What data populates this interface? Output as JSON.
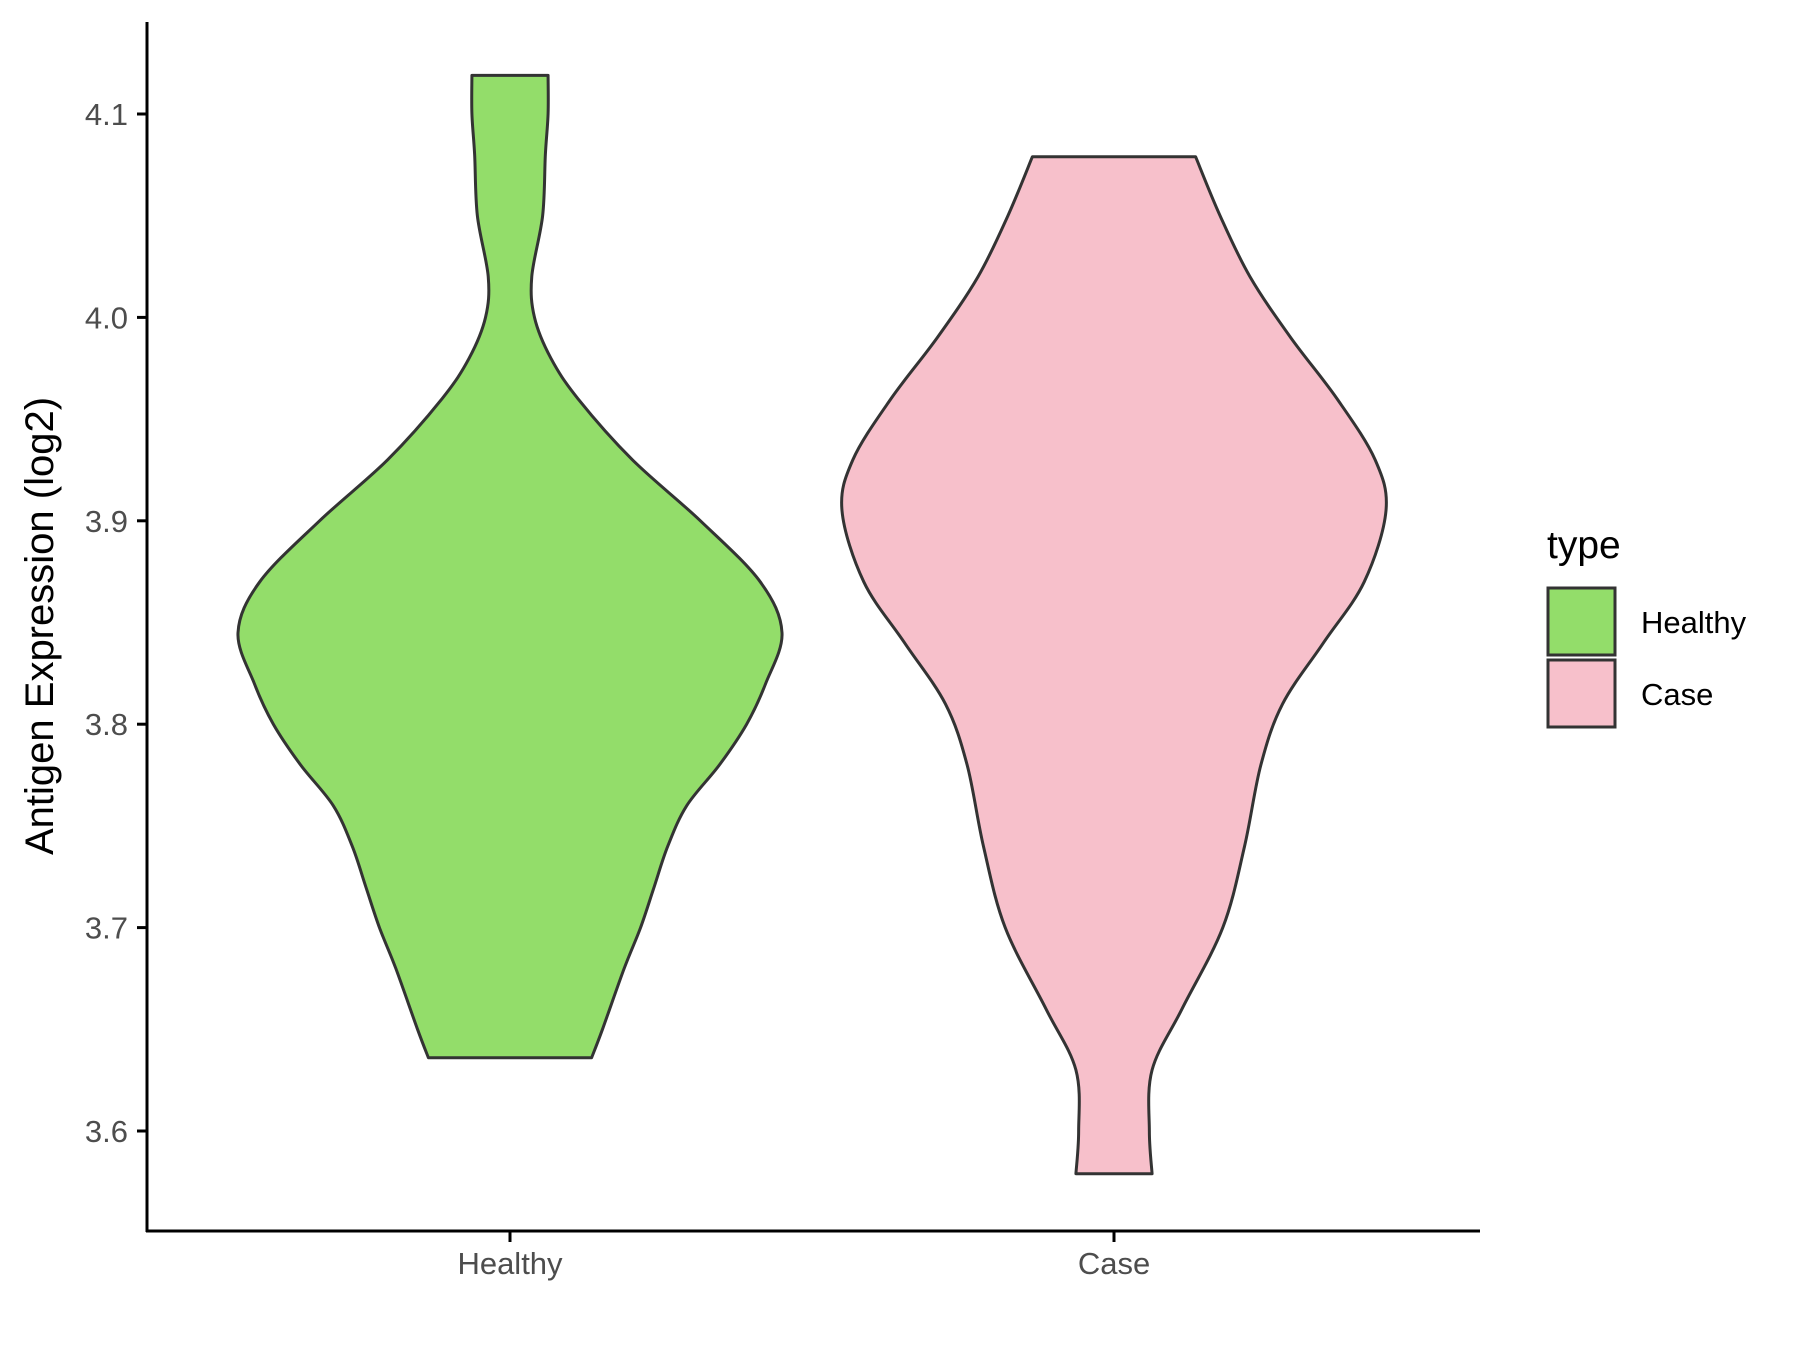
{
  "chart_data": {
    "type": "violin",
    "title": "",
    "xlabel": "",
    "ylabel": "Antigen Expression (log2)",
    "ylim": [
      3.548,
      4.145
    ],
    "yticks": [
      "3.6",
      "3.7",
      "3.8",
      "3.9",
      "4.0",
      "4.1"
    ],
    "categories": [
      "Healthy",
      "Case"
    ],
    "grid": false,
    "legend": {
      "title": "type",
      "placement": "right",
      "entries": [
        "Healthy",
        "Case"
      ]
    },
    "series": [
      {
        "name": "Healthy",
        "color": "#93DD6A",
        "min": 3.636,
        "max": 4.119,
        "density_profile": [
          [
            3.636,
            0.3
          ],
          [
            3.65,
            0.34
          ],
          [
            3.68,
            0.42
          ],
          [
            3.7,
            0.48
          ],
          [
            3.72,
            0.53
          ],
          [
            3.74,
            0.58
          ],
          [
            3.76,
            0.65
          ],
          [
            3.78,
            0.77
          ],
          [
            3.8,
            0.87
          ],
          [
            3.82,
            0.94
          ],
          [
            3.845,
            1.0
          ],
          [
            3.87,
            0.92
          ],
          [
            3.9,
            0.7
          ],
          [
            3.93,
            0.45
          ],
          [
            3.96,
            0.25
          ],
          [
            3.98,
            0.15
          ],
          [
            4.0,
            0.09
          ],
          [
            4.02,
            0.08
          ],
          [
            4.05,
            0.12
          ],
          [
            4.08,
            0.13
          ],
          [
            4.1,
            0.14
          ],
          [
            4.119,
            0.14
          ]
        ]
      },
      {
        "name": "Case",
        "color": "#F7C0CB",
        "min": 3.579,
        "max": 4.079,
        "density_profile": [
          [
            3.579,
            0.14
          ],
          [
            3.6,
            0.13
          ],
          [
            3.63,
            0.14
          ],
          [
            3.66,
            0.25
          ],
          [
            3.7,
            0.4
          ],
          [
            3.74,
            0.48
          ],
          [
            3.78,
            0.54
          ],
          [
            3.81,
            0.62
          ],
          [
            3.84,
            0.77
          ],
          [
            3.87,
            0.92
          ],
          [
            3.905,
            1.0
          ],
          [
            3.93,
            0.96
          ],
          [
            3.96,
            0.82
          ],
          [
            3.99,
            0.65
          ],
          [
            4.02,
            0.5
          ],
          [
            4.05,
            0.39
          ],
          [
            4.079,
            0.3
          ]
        ]
      }
    ]
  }
}
